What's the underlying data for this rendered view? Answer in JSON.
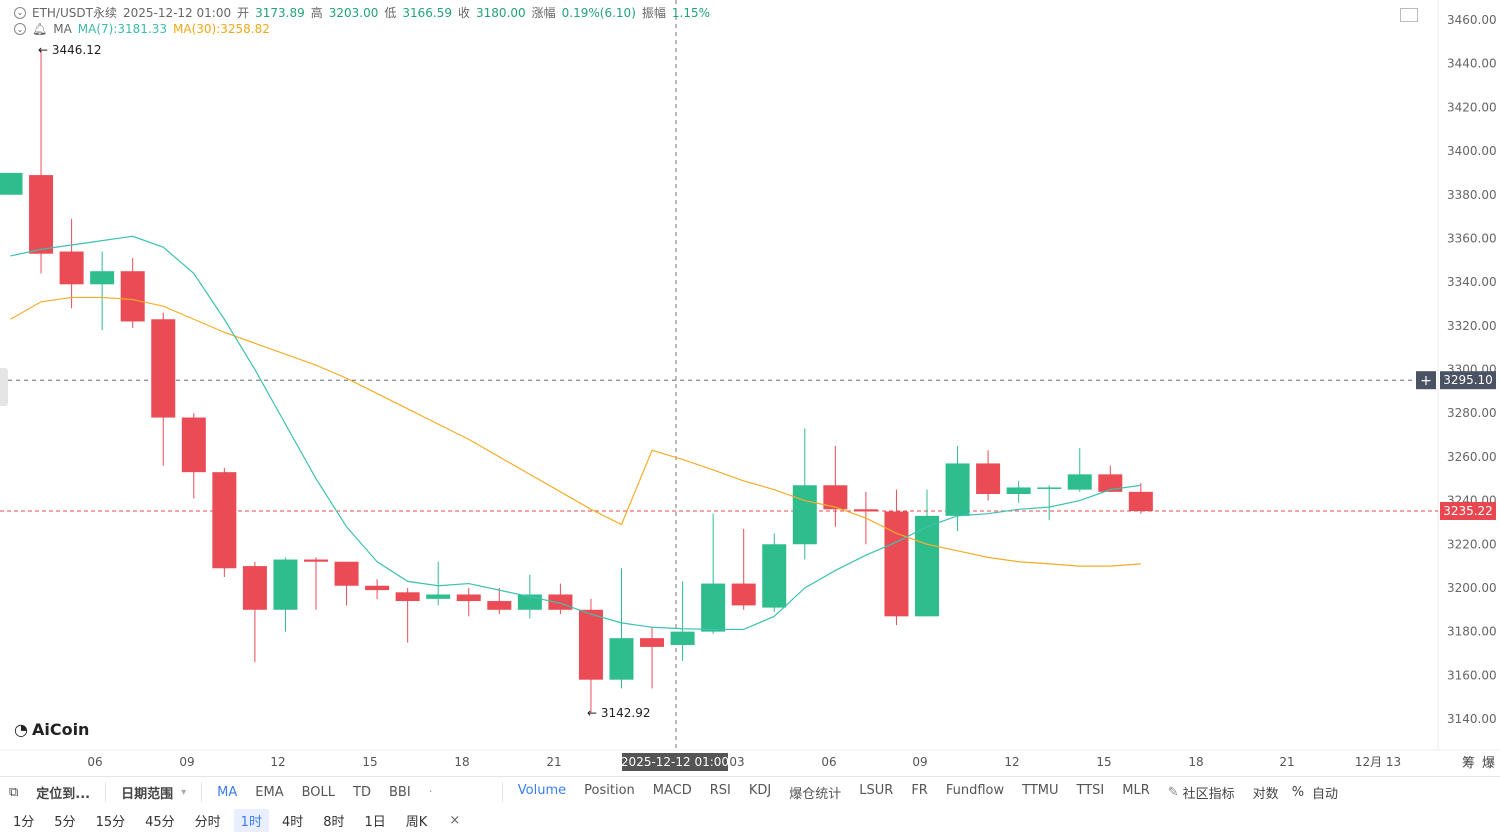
{
  "legend": {
    "symbol": "ETH/USDT永续",
    "datetime": "2025-12-12 01:00",
    "open_label": "开",
    "open": "3173.89",
    "high_label": "高",
    "high": "3203.00",
    "low_label": "低",
    "low": "3166.59",
    "close_label": "收",
    "close": "3180.00",
    "change_label": "涨幅",
    "change": "0.19%(6.10)",
    "amp_label": "振幅",
    "amp": "1.15%",
    "ma_label": "MA",
    "ma7": "MA(7):3181.33",
    "ma30": "MA(30):3258.82"
  },
  "annotations": {
    "high_mark": "← 3446.12",
    "low_mark": "← 3142.92"
  },
  "y_axis": [
    "3460.00",
    "3440.00",
    "3420.00",
    "3400.00",
    "3380.00",
    "3360.00",
    "3340.00",
    "3320.00",
    "3300.00",
    "3280.00",
    "3260.00",
    "3240.00",
    "3220.00",
    "3200.00",
    "3180.00",
    "3160.00",
    "3140.00"
  ],
  "x_axis": [
    "06",
    "09",
    "12",
    "15",
    "18",
    "21",
    "03",
    "06",
    "09",
    "12",
    "15",
    "18",
    "21",
    "12月 13"
  ],
  "crosshair": {
    "time": "2025-12-12 01:00",
    "price": "3295.10"
  },
  "last_price": "3235.22",
  "logo_text": "AiCoin",
  "toolbar": {
    "locate": "定位到...",
    "date_range": "日期范围",
    "indicators_main": [
      "MA",
      "EMA",
      "BOLL",
      "TD",
      "BBI"
    ],
    "indicators_sub": [
      "Volume",
      "Position",
      "MACD",
      "RSI",
      "KDJ",
      "爆仓统计",
      "LSUR",
      "FR",
      "Fundflow",
      "TTMU",
      "TTSI",
      "MLR"
    ],
    "community": "社区指标",
    "log": "对数",
    "percent": "%",
    "auto": "自动",
    "chip": "筹",
    "burst": "爆"
  },
  "intervals": [
    "1分",
    "5分",
    "15分",
    "45分",
    "分时",
    "1时",
    "4时",
    "8时",
    "1日",
    "周K"
  ],
  "active_interval": "1时",
  "colors": {
    "up": "#2ebd8d",
    "down": "#ea4b55",
    "ma7": "#3cc2b0",
    "ma30": "#f5ad28",
    "crosshair": "#555",
    "last": "#e8474f"
  },
  "chart_data": {
    "type": "candlestick",
    "ylim": [
      3135,
      3465
    ],
    "candles": [
      {
        "o": 3380,
        "h": 3390,
        "l": 3380,
        "c": 3390
      },
      {
        "o": 3389,
        "h": 3446.12,
        "l": 3344,
        "c": 3353
      },
      {
        "o": 3354,
        "h": 3369,
        "l": 3328,
        "c": 3339
      },
      {
        "o": 3339,
        "h": 3354,
        "l": 3318,
        "c": 3345
      },
      {
        "o": 3345,
        "h": 3351,
        "l": 3319,
        "c": 3322
      },
      {
        "o": 3323,
        "h": 3326,
        "l": 3256,
        "c": 3278
      },
      {
        "o": 3278,
        "h": 3280,
        "l": 3241,
        "c": 3253
      },
      {
        "o": 3253,
        "h": 3255,
        "l": 3205,
        "c": 3209
      },
      {
        "o": 3210,
        "h": 3212,
        "l": 3166,
        "c": 3190
      },
      {
        "o": 3190,
        "h": 3214,
        "l": 3180,
        "c": 3213
      },
      {
        "o": 3213,
        "h": 3214,
        "l": 3190,
        "c": 3212
      },
      {
        "o": 3212,
        "h": 3212,
        "l": 3192,
        "c": 3201
      },
      {
        "o": 3201,
        "h": 3204,
        "l": 3195,
        "c": 3199
      },
      {
        "o": 3198,
        "h": 3200,
        "l": 3175,
        "c": 3194
      },
      {
        "o": 3195,
        "h": 3212,
        "l": 3192,
        "c": 3197
      },
      {
        "o": 3197,
        "h": 3200,
        "l": 3187,
        "c": 3194
      },
      {
        "o": 3194,
        "h": 3200,
        "l": 3188,
        "c": 3190
      },
      {
        "o": 3190,
        "h": 3206,
        "l": 3186,
        "c": 3197
      },
      {
        "o": 3197,
        "h": 3202,
        "l": 3188,
        "c": 3190
      },
      {
        "o": 3190,
        "h": 3195,
        "l": 3142.92,
        "c": 3158
      },
      {
        "o": 3158,
        "h": 3209,
        "l": 3154,
        "c": 3177
      },
      {
        "o": 3177,
        "h": 3182,
        "l": 3154,
        "c": 3173
      },
      {
        "o": 3173.89,
        "h": 3203,
        "l": 3166.59,
        "c": 3180
      },
      {
        "o": 3180,
        "h": 3234,
        "l": 3179,
        "c": 3202
      },
      {
        "o": 3202,
        "h": 3227,
        "l": 3190,
        "c": 3192
      },
      {
        "o": 3191,
        "h": 3225,
        "l": 3189,
        "c": 3220
      },
      {
        "o": 3220,
        "h": 3273,
        "l": 3213,
        "c": 3247
      },
      {
        "o": 3247,
        "h": 3265,
        "l": 3228,
        "c": 3236
      },
      {
        "o": 3236,
        "h": 3244,
        "l": 3220,
        "c": 3235
      },
      {
        "o": 3235,
        "h": 3245,
        "l": 3183,
        "c": 3187
      },
      {
        "o": 3187,
        "h": 3245,
        "l": 3187,
        "c": 3233
      },
      {
        "o": 3233,
        "h": 3265,
        "l": 3226,
        "c": 3257
      },
      {
        "o": 3257,
        "h": 3263,
        "l": 3240,
        "c": 3243
      },
      {
        "o": 3243,
        "h": 3249,
        "l": 3239,
        "c": 3246
      },
      {
        "o": 3246,
        "h": 3247,
        "l": 3231,
        "c": 3246
      },
      {
        "o": 3245,
        "h": 3264,
        "l": 3244,
        "c": 3252
      },
      {
        "o": 3252,
        "h": 3256,
        "l": 3244,
        "c": 3244
      },
      {
        "o": 3244,
        "h": 3248,
        "l": 3234,
        "c": 3235.22
      }
    ],
    "ma7": [
      3352,
      3355,
      3357,
      3359,
      3361,
      3356,
      3344,
      3323,
      3300,
      3275,
      3250,
      3228,
      3212,
      3203,
      3201,
      3202,
      3199,
      3196,
      3193,
      3188,
      3184,
      3182,
      3181.33,
      3181,
      3181,
      3187,
      3200,
      3208,
      3215,
      3221,
      3228,
      3233,
      3234,
      3236,
      3237,
      3240,
      3245,
      3247
    ],
    "ma30": [
      3323,
      3331,
      3333,
      3333,
      3332,
      3329,
      3323,
      3317,
      3312,
      3307,
      3302,
      3296,
      3289,
      3282,
      3275,
      3268,
      3260,
      3252,
      3244,
      3236,
      3229,
      3263,
      3258.82,
      3254,
      3249,
      3245,
      3240,
      3237,
      3232,
      3225,
      3220,
      3217,
      3214,
      3212,
      3211,
      3210,
      3210,
      3211
    ]
  }
}
